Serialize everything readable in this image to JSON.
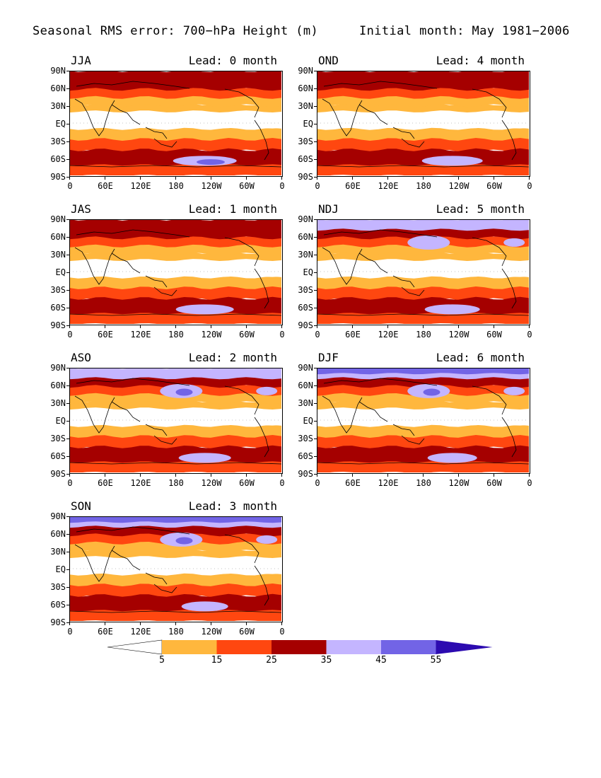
{
  "header": {
    "title_left": "Seasonal RMS error: 700−hPa Height (m)",
    "title_right": "Initial month: May 1981−2006"
  },
  "axes": {
    "lat_labels": [
      "90N",
      "60N",
      "30N",
      "EQ",
      "30S",
      "60S",
      "90S"
    ],
    "lon_labels": [
      "0",
      "60E",
      "120E",
      "180",
      "120W",
      "60W",
      "0"
    ]
  },
  "panels": [
    {
      "season": "JJA",
      "lead": "Lead: 0 month"
    },
    {
      "season": "OND",
      "lead": "Lead: 4 month"
    },
    {
      "season": "JAS",
      "lead": "Lead: 1 month"
    },
    {
      "season": "NDJ",
      "lead": "Lead: 5 month"
    },
    {
      "season": "ASO",
      "lead": "Lead: 2 month"
    },
    {
      "season": "DJF",
      "lead": "Lead: 6 month"
    },
    {
      "season": "SON",
      "lead": "Lead: 3 month"
    }
  ],
  "colorbar": {
    "levels": [
      "5",
      "15",
      "25",
      "35",
      "45",
      "55"
    ],
    "colors": [
      "#ffffff",
      "#ffb73d",
      "#ff4710",
      "#a50000",
      "#c4b5ff",
      "#7264e6",
      "#2c0bb0"
    ]
  }
}
